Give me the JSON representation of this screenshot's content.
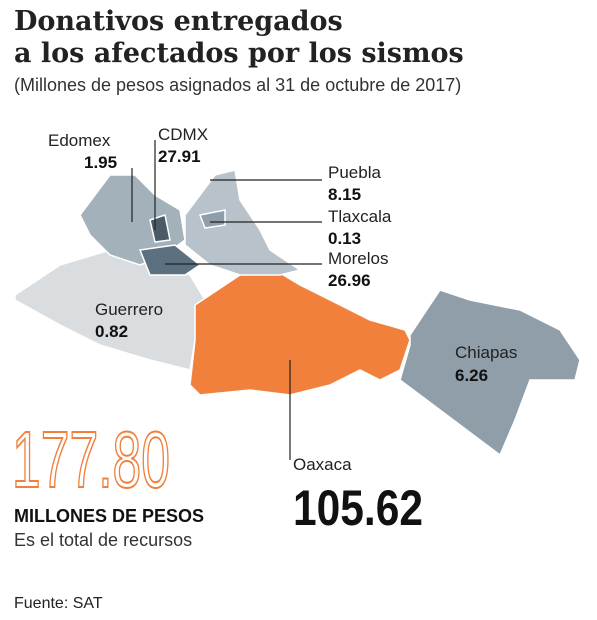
{
  "header": {
    "title_line1": "Donativos entregados",
    "title_line2": "a los afectados por los sismos",
    "subtitle": "(Millones de pesos asignados al 31 de octubre de 2017)"
  },
  "regions": [
    {
      "name": "Edomex",
      "value": "1.95"
    },
    {
      "name": "CDMX",
      "value": "27.91"
    },
    {
      "name": "Puebla",
      "value": "8.15"
    },
    {
      "name": "Tlaxcala",
      "value": "0.13"
    },
    {
      "name": "Morelos",
      "value": "26.96"
    },
    {
      "name": "Guerrero",
      "value": "0.82"
    },
    {
      "name": "Chiapas",
      "value": "6.26"
    },
    {
      "name": "Oaxaca",
      "value": "105.62"
    }
  ],
  "total": {
    "value": "177.80",
    "label": "MILLONES DE PESOS",
    "sub": "Es el total de recursos"
  },
  "source": "Fuente: SAT"
}
